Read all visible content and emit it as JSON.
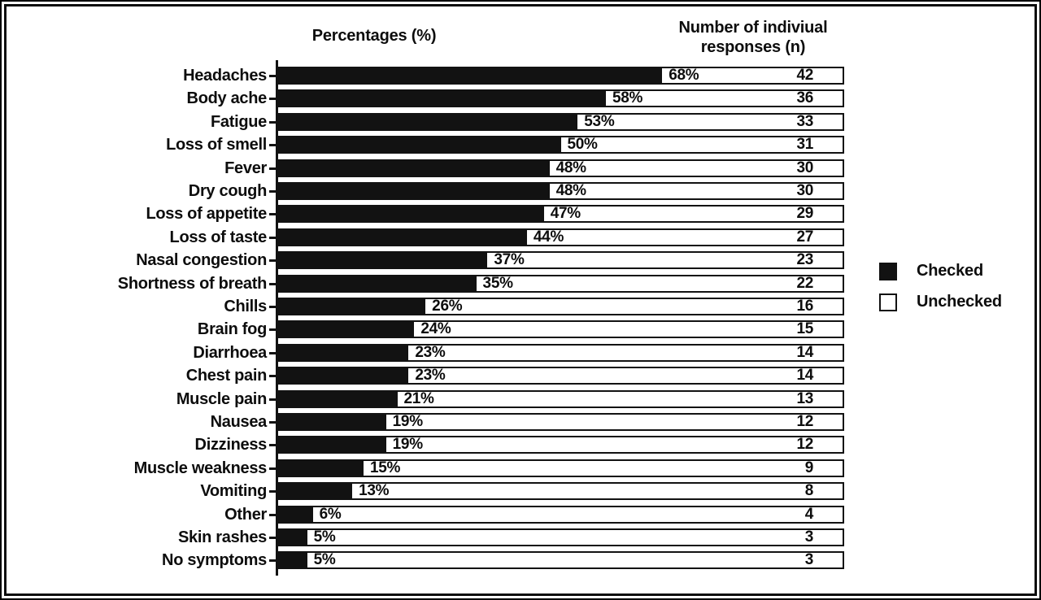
{
  "chart_data": {
    "type": "bar",
    "orientation": "horizontal",
    "title_left": "Percentages (%)",
    "title_right": "Number of indiviual responses (n)",
    "xlim": [
      0,
      100
    ],
    "grid": false,
    "legend_position": "right",
    "categories": [
      "Headaches",
      "Body ache",
      "Fatigue",
      "Loss of smell",
      "Fever",
      "Dry cough",
      "Loss of appetite",
      "Loss of taste",
      "Nasal congestion",
      "Shortness of breath",
      "Chills",
      "Brain fog",
      "Diarrhoea",
      "Chest pain",
      "Muscle pain",
      "Nausea",
      "Dizziness",
      "Muscle weakness",
      "Vomiting",
      "Other",
      "Skin rashes",
      "No symptoms"
    ],
    "series": [
      {
        "name": "Checked",
        "unit": "%",
        "values": [
          68,
          58,
          53,
          50,
          48,
          48,
          47,
          44,
          37,
          35,
          26,
          24,
          23,
          23,
          21,
          19,
          19,
          15,
          13,
          6,
          5,
          5
        ]
      },
      {
        "name": "Unchecked",
        "unit": "%",
        "values": [
          32,
          42,
          47,
          50,
          52,
          52,
          53,
          56,
          63,
          65,
          74,
          76,
          77,
          77,
          79,
          81,
          81,
          85,
          87,
          94,
          95,
          95
        ]
      }
    ],
    "percent_labels": [
      "68%",
      "58%",
      "53%",
      "50%",
      "48%",
      "48%",
      "47%",
      "44%",
      "37%",
      "35%",
      "26%",
      "24%",
      "23%",
      "23%",
      "21%",
      "19%",
      "19%",
      "15%",
      "13%",
      "6%",
      "5%",
      "5%"
    ],
    "n_responses": [
      42,
      36,
      33,
      31,
      30,
      30,
      29,
      27,
      23,
      22,
      16,
      15,
      14,
      14,
      13,
      12,
      12,
      9,
      8,
      4,
      3,
      3
    ],
    "colors": {
      "checked_fill": "#121212",
      "unchecked_fill": "#ffffff",
      "bar_border": "#121212",
      "text": "#0d0d0d"
    },
    "legend": {
      "entries": [
        {
          "label": "Checked",
          "swatch": "filled-black"
        },
        {
          "label": "Unchecked",
          "swatch": "white-outline"
        }
      ]
    }
  }
}
